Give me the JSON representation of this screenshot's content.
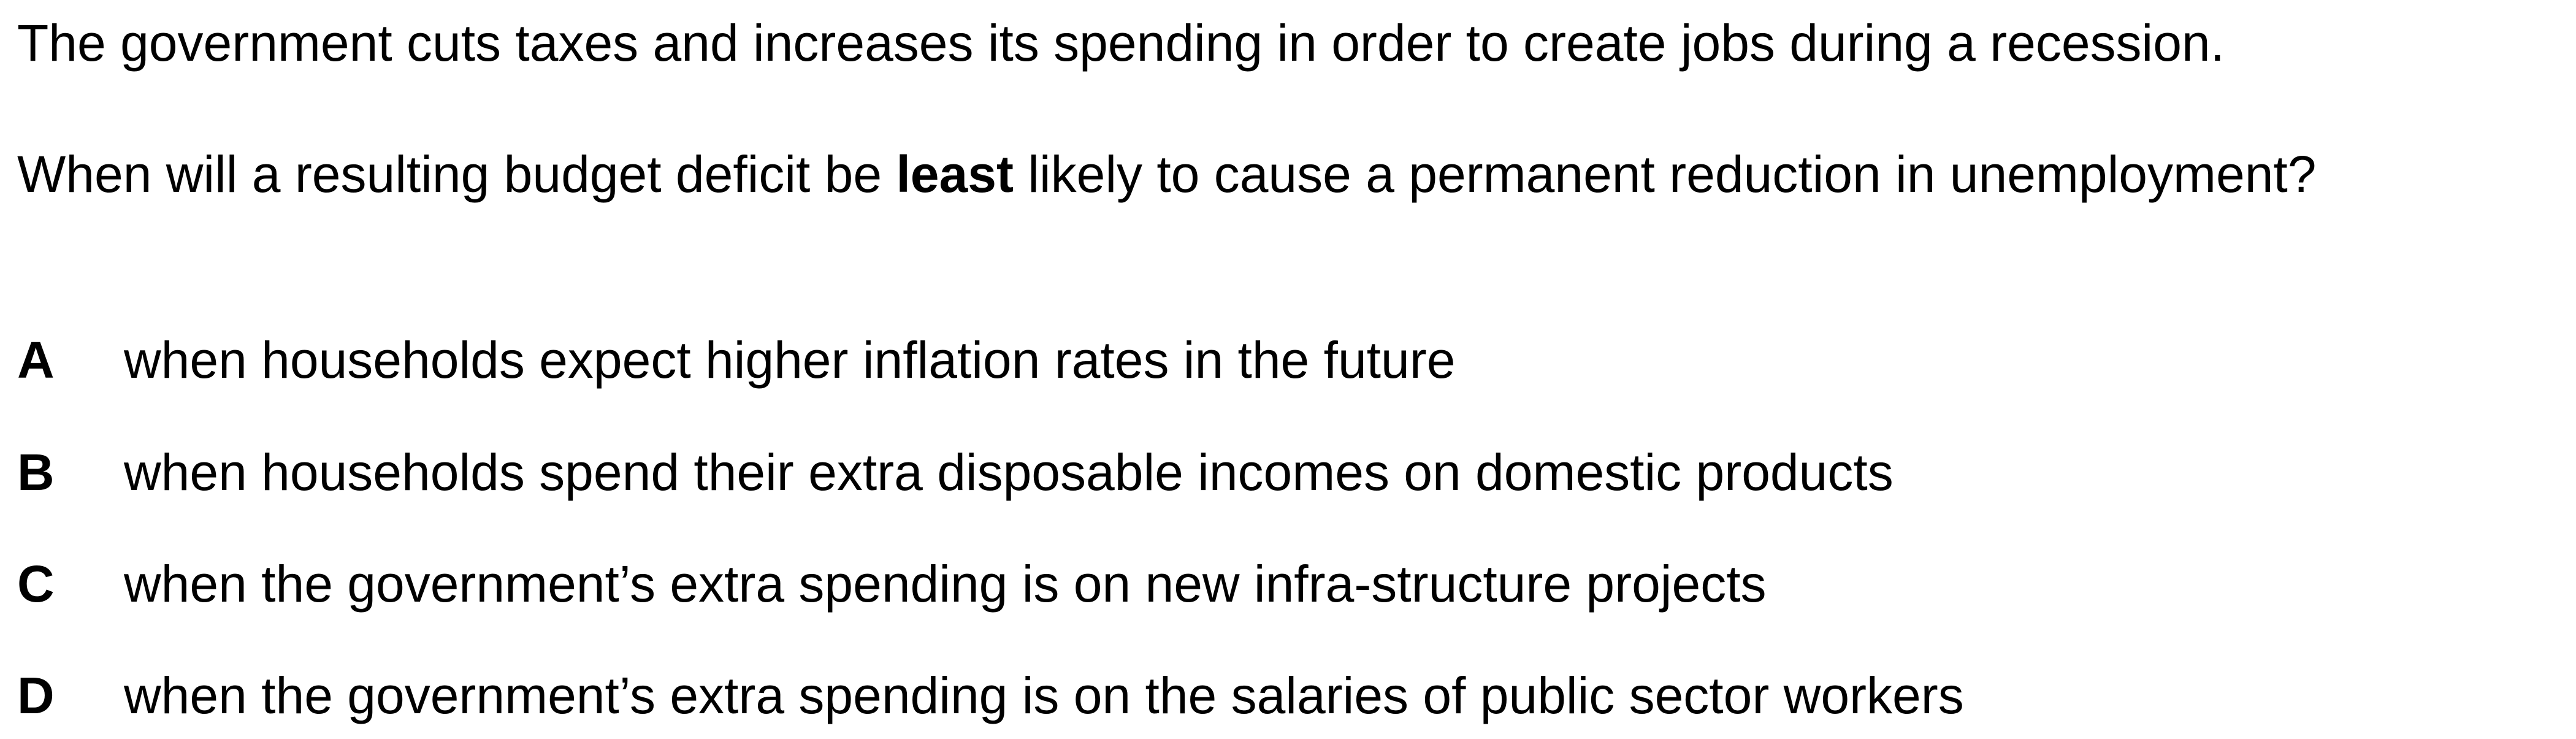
{
  "intro": "The government cuts taxes and increases its spending in order to create jobs during a recession.",
  "question": {
    "before": "When will a resulting budget deficit be ",
    "emphasis": "least",
    "after": " likely to cause a permanent reduction in unemployment?"
  },
  "options": [
    {
      "letter": "A",
      "text": "when households expect higher inflation rates in the future"
    },
    {
      "letter": "B",
      "text": "when households spend their extra disposable incomes on domestic products"
    },
    {
      "letter": "C",
      "text": "when the government’s extra spending is on new infra-structure projects"
    },
    {
      "letter": "D",
      "text": "when the government’s extra spending is on the salaries of public sector workers"
    }
  ]
}
